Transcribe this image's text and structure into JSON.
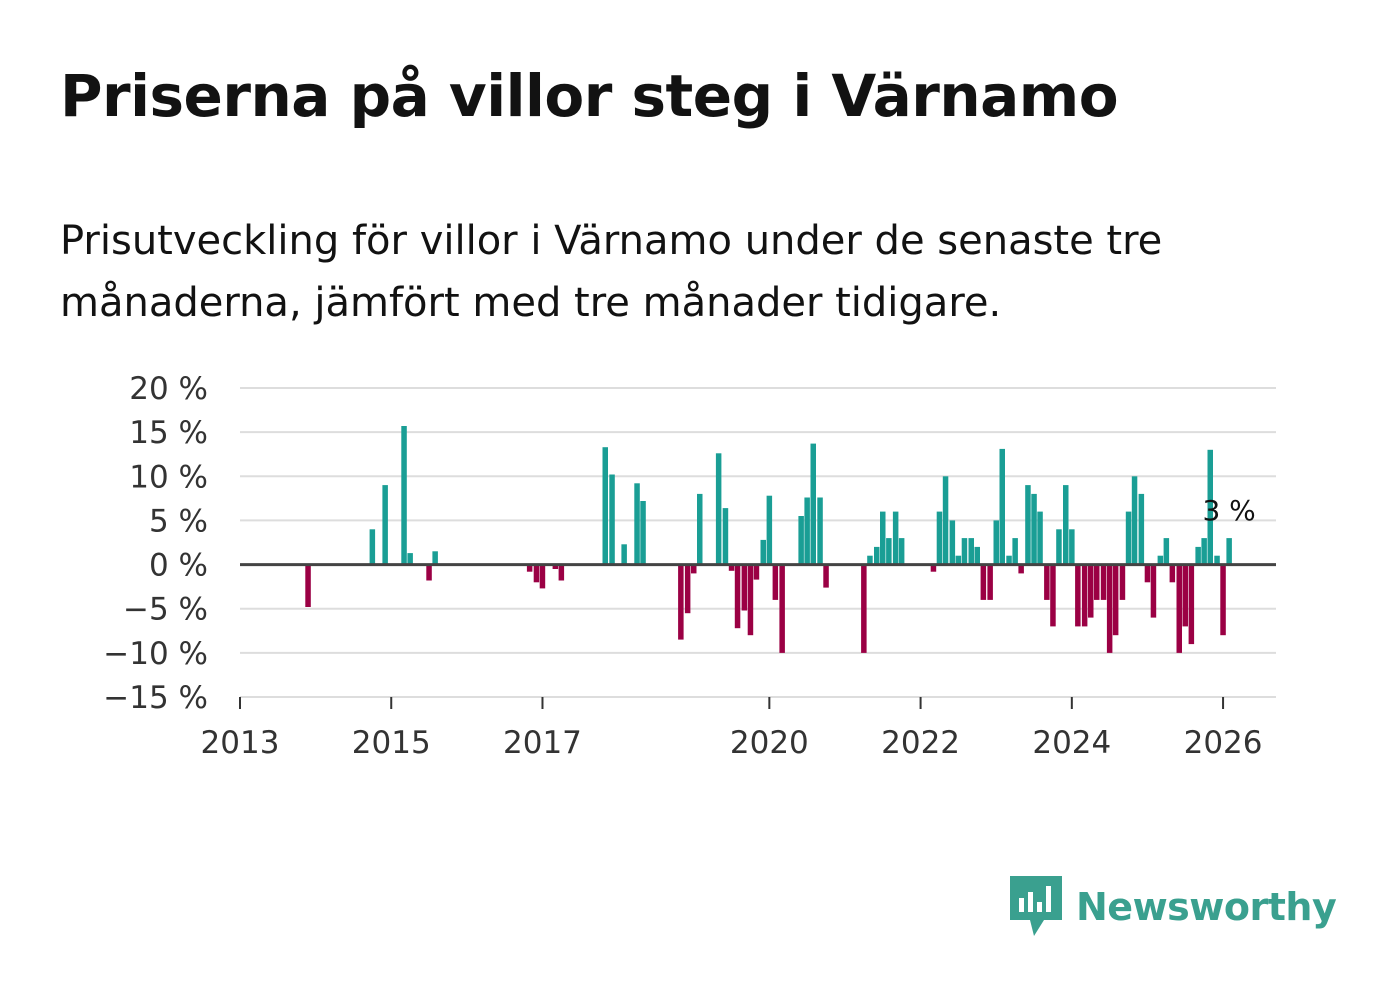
{
  "title": "Priserna på villor steg i Värnamo",
  "subtitle": "Prisutveckling för villor i Värnamo under de senaste tre månaderna, jämfört med tre månader tidigare.",
  "logo": {
    "text": "Newsworthy",
    "icon": "newsworthy-bars-icon",
    "color": "#3aa08f"
  },
  "colors": {
    "positive": "#1a9e95",
    "negative": "#9b0044",
    "grid": "#dddddd",
    "zero": "#444444"
  },
  "chart_data": {
    "type": "bar",
    "title": "Priserna på villor steg i Värnamo",
    "ylim": [
      -15,
      20
    ],
    "yticks": [
      20,
      15,
      10,
      5,
      0,
      -5,
      -10,
      -15
    ],
    "ytick_labels": [
      "20 %",
      "15 %",
      "10 %",
      "5 %",
      "0 %",
      "−5 %",
      "−10 %",
      "−15 %"
    ],
    "xlim": [
      2013,
      2026.7
    ],
    "xticks": [
      2013,
      2015,
      2017,
      2020,
      2022,
      2024,
      2026
    ],
    "xtick_labels": [
      "2013",
      "2015",
      "2017",
      "2020",
      "2022",
      "2024",
      "2026"
    ],
    "last_value_label": "3 %",
    "series": [
      {
        "name": "Prisutveckling",
        "x": [
          2013.9,
          2014.75,
          2014.92,
          2015.17,
          2015.25,
          2015.5,
          2015.58,
          2016.83,
          2016.92,
          2017.0,
          2017.17,
          2017.25,
          2017.83,
          2017.92,
          2018.08,
          2018.25,
          2018.33,
          2018.83,
          2018.92,
          2019.0,
          2019.08,
          2019.33,
          2019.42,
          2019.5,
          2019.58,
          2019.67,
          2019.75,
          2019.83,
          2019.92,
          2020.0,
          2020.08,
          2020.17,
          2020.42,
          2020.5,
          2020.58,
          2020.67,
          2020.75,
          2021.25,
          2021.33,
          2021.42,
          2021.5,
          2021.58,
          2021.67,
          2021.75,
          2022.17,
          2022.25,
          2022.33,
          2022.42,
          2022.5,
          2022.58,
          2022.67,
          2022.75,
          2022.83,
          2022.92,
          2023.0,
          2023.08,
          2023.17,
          2023.25,
          2023.33,
          2023.42,
          2023.5,
          2023.58,
          2023.67,
          2023.75,
          2023.83,
          2023.92,
          2024.0,
          2024.08,
          2024.17,
          2024.25,
          2024.33,
          2024.42,
          2024.5,
          2024.58,
          2024.67,
          2024.75,
          2024.83,
          2024.92,
          2025.0,
          2025.08,
          2025.17,
          2025.25,
          2025.33,
          2025.42,
          2025.5,
          2025.58,
          2025.67,
          2025.75,
          2025.83,
          2025.92,
          2026.0,
          2026.08
        ],
        "values": [
          -4.8,
          4.0,
          9.0,
          15.7,
          1.3,
          -1.8,
          1.5,
          -0.8,
          -2.0,
          -2.7,
          -0.5,
          -1.8,
          13.3,
          10.2,
          2.3,
          9.2,
          7.2,
          -8.5,
          -5.5,
          -1.0,
          8.0,
          12.6,
          6.4,
          -0.7,
          -7.2,
          -5.2,
          -8.0,
          -1.7,
          2.8,
          7.8,
          -4.0,
          -10.0,
          5.5,
          7.6,
          13.7,
          7.6,
          -2.6,
          -10.0,
          1.0,
          2.0,
          6.0,
          3.0,
          6.0,
          3.0,
          -0.8,
          6.0,
          10.0,
          5.0,
          1.0,
          3.0,
          3.0,
          2.0,
          -4.0,
          -4.0,
          5.0,
          13.1,
          1.0,
          3.0,
          -1.0,
          9.0,
          8.0,
          6.0,
          -4.0,
          -7.0,
          4.0,
          9.0,
          4.0,
          -7.0,
          -7.0,
          -6.0,
          -4.0,
          -4.0,
          -10.0,
          -8.0,
          -4.0,
          6.0,
          10.0,
          8.0,
          -2.0,
          -6.0,
          1.0,
          3.0,
          -2.0,
          -10.0,
          -7.0,
          -9.0,
          2.0,
          3.0,
          13.0,
          1.0,
          -8.0,
          3.0
        ]
      }
    ]
  }
}
